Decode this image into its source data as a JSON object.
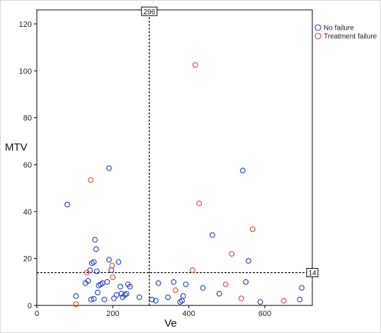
{
  "chart_data": {
    "type": "scatter",
    "title": "",
    "xlabel": "Ve",
    "ylabel": "MTV",
    "xlim": [
      0,
      725
    ],
    "ylim": [
      0,
      126
    ],
    "x_ticks": [
      0,
      200,
      400,
      600
    ],
    "y_ticks": [
      0,
      20,
      40,
      60,
      80,
      100,
      120
    ],
    "grid": false,
    "legend_position": "top-right",
    "reference_lines": [
      {
        "axis": "x",
        "value": 296,
        "label": "296",
        "style": "dashed"
      },
      {
        "axis": "y",
        "value": 14,
        "label": "14",
        "style": "dashed"
      }
    ],
    "series": [
      {
        "name": "No failure",
        "color": "#1f3fbf",
        "marker": "open-circle",
        "points": [
          [
            80,
            43
          ],
          [
            190,
            58.5
          ],
          [
            103,
            4
          ],
          [
            128,
            9.5
          ],
          [
            135,
            10.5
          ],
          [
            140,
            15
          ],
          [
            145,
            18
          ],
          [
            150,
            18.5
          ],
          [
            153,
            28
          ],
          [
            156,
            24
          ],
          [
            158,
            14.5
          ],
          [
            143,
            2.5
          ],
          [
            150,
            2.8
          ],
          [
            160,
            5.5
          ],
          [
            163,
            8.5
          ],
          [
            168,
            9
          ],
          [
            173,
            9.5
          ],
          [
            178,
            2.5
          ],
          [
            185,
            10
          ],
          [
            190,
            19.5
          ],
          [
            196,
            15
          ],
          [
            203,
            3
          ],
          [
            210,
            4.5
          ],
          [
            215,
            18.5
          ],
          [
            220,
            8
          ],
          [
            223,
            5
          ],
          [
            226,
            3.5
          ],
          [
            232,
            4.5
          ],
          [
            236,
            5
          ],
          [
            240,
            9
          ],
          [
            245,
            8
          ],
          [
            270,
            3.5
          ],
          [
            303,
            2.5
          ],
          [
            313,
            2
          ],
          [
            320,
            9.5
          ],
          [
            345,
            3.5
          ],
          [
            360,
            10
          ],
          [
            377,
            1.5
          ],
          [
            382,
            2
          ],
          [
            385,
            4
          ],
          [
            392,
            9
          ],
          [
            437,
            7.5
          ],
          [
            462,
            30
          ],
          [
            480,
            5
          ],
          [
            542,
            57.5
          ],
          [
            550,
            10
          ],
          [
            557,
            19
          ],
          [
            588,
            1.5
          ],
          [
            692,
            2.5
          ],
          [
            697,
            7.5
          ]
        ]
      },
      {
        "name": "Treatment failure",
        "color": "#e8432c",
        "marker": "open-circle",
        "points": [
          [
            142,
            53.5
          ],
          [
            132,
            14
          ],
          [
            200,
            12
          ],
          [
            198,
            17
          ],
          [
            103,
            0.5
          ],
          [
            365,
            6.5
          ],
          [
            410,
            15
          ],
          [
            417,
            102.5
          ],
          [
            427,
            43.5
          ],
          [
            497,
            9
          ],
          [
            513,
            22
          ],
          [
            538,
            3
          ],
          [
            568,
            32.5
          ],
          [
            650,
            2
          ]
        ]
      }
    ]
  }
}
